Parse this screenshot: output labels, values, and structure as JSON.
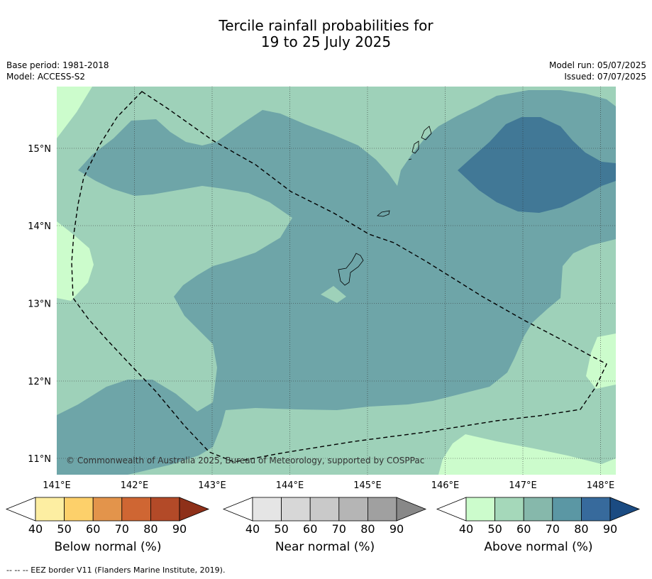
{
  "title_line1": "Tercile rainfall probabilities for",
  "title_line2": "19 to 25 July 2025",
  "base_period": "Base period: 1981-2018",
  "model": "Model: ACCESS-S2",
  "model_run": "Model run: 05/07/2025",
  "issued": "Issued: 07/07/2025",
  "copyright": "© Commonwealth of Australia 2025, Bureau of Meteorology, supported by COSPPac",
  "lon_labels": [
    "141°E",
    "142°E",
    "143°E",
    "144°E",
    "145°E",
    "146°E",
    "147°E",
    "148°E"
  ],
  "lat_labels": [
    "15°N",
    "14°N",
    "13°N",
    "12°N",
    "11°N"
  ],
  "colorbars": [
    {
      "label": "Below normal (%)",
      "ticks": [
        "40",
        "50",
        "60",
        "70",
        "80",
        "90"
      ],
      "colors": [
        "#fdeea2",
        "#fdd06a",
        "#e3944b",
        "#cf6633",
        "#b34a28",
        "#8e3019"
      ]
    },
    {
      "label": "Near normal (%)",
      "ticks": [
        "40",
        "50",
        "60",
        "70",
        "80",
        "90"
      ],
      "colors": [
        "#e5e5e5",
        "#d7d7d7",
        "#c9c9c9",
        "#b5b5b5",
        "#a0a0a0",
        "#888888"
      ]
    },
    {
      "label": "Above normal (%)",
      "ticks": [
        "40",
        "50",
        "60",
        "70",
        "80",
        "90"
      ],
      "colors": [
        "#ccfccc",
        "#a5d8ba",
        "#86b8ab",
        "#5b97a4",
        "#376a9c",
        "#1b4b82"
      ]
    }
  ],
  "map_colors": {
    "band_40": "#ccfccc",
    "band_50": "#9ed1b9",
    "band_60": "#6ea5a8",
    "band_70": "#417896"
  },
  "footnote": "--  --  -- EEZ border V11 (Flanders Marine Institute, 2019)."
}
